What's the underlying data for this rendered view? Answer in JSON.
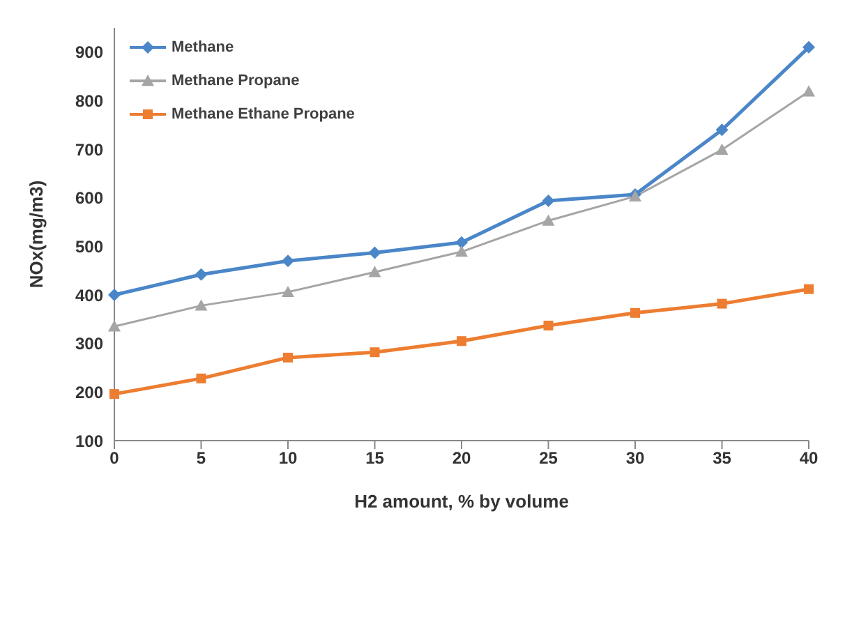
{
  "chart_data": {
    "type": "line",
    "xlabel": "H2 amount, % by volume",
    "ylabel": "NOx(mg/m3)",
    "categories": [
      "0",
      "5",
      "10",
      "15",
      "20",
      "25",
      "30",
      "35",
      "40"
    ],
    "series": [
      {
        "name": "Methane",
        "color": "#4a86c8",
        "marker": "diamond",
        "values": [
          400,
          442,
          470,
          487,
          508,
          594,
          607,
          740,
          910
        ]
      },
      {
        "name": "Methane Propane",
        "color": "#a5a5a5",
        "marker": "triangle",
        "values": [
          335,
          378,
          406,
          447,
          489,
          553,
          603,
          699,
          819
        ]
      },
      {
        "name": "Methane Ethane Propane",
        "color": "#ed7d31",
        "marker": "square",
        "values": [
          196,
          228,
          271,
          282,
          305,
          337,
          363,
          382,
          412
        ]
      }
    ],
    "ylim": [
      100,
      950
    ],
    "yticks": [
      100,
      200,
      300,
      400,
      500,
      600,
      700,
      800,
      900
    ],
    "grid": false,
    "legend": "top left",
    "line_style": "solid"
  }
}
